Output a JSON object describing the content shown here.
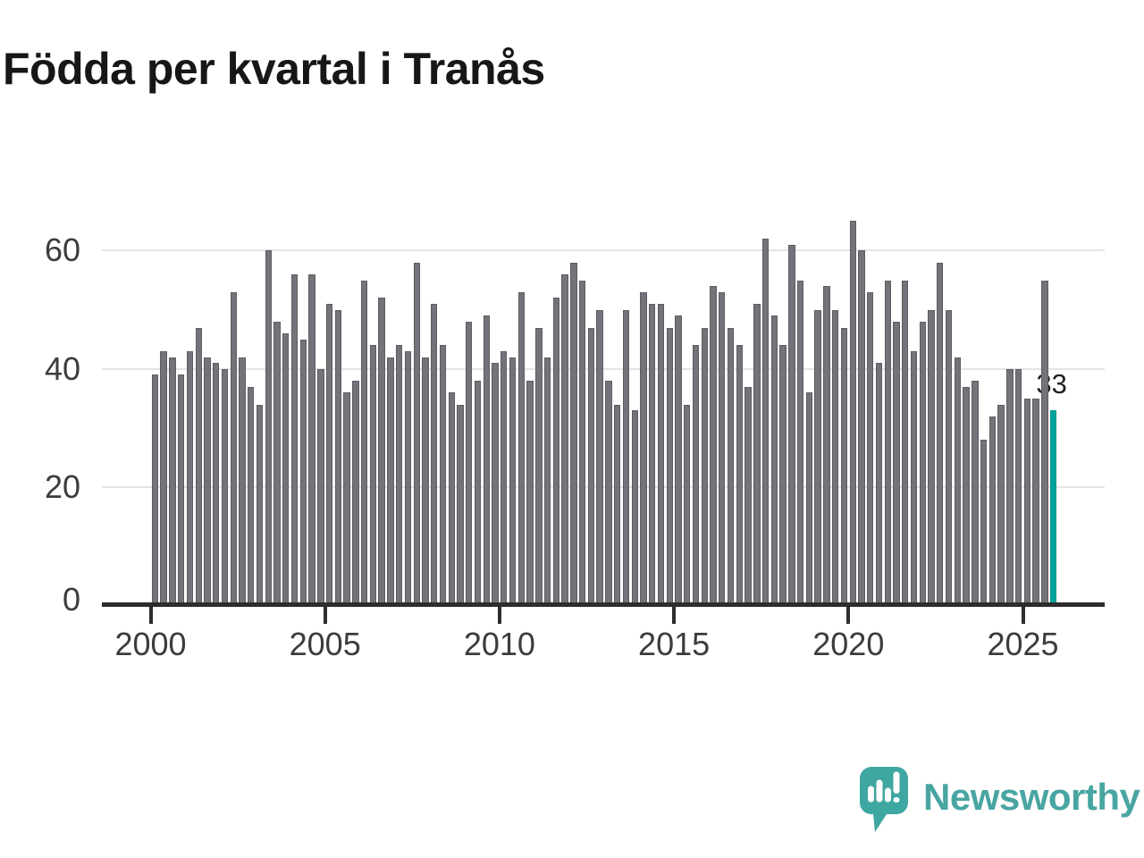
{
  "title": "Födda per kvartal i Tranås",
  "chart_data": {
    "type": "bar",
    "x_range": {
      "start": "2000 Q1",
      "end": "2025 Q4",
      "interval": "quarter"
    },
    "x_tick_labels": [
      "2000",
      "2005",
      "2010",
      "2015",
      "2020",
      "2025"
    ],
    "y_tick_labels": [
      "0",
      "20",
      "40",
      "60"
    ],
    "y_ticks": [
      0,
      20,
      40,
      60
    ],
    "ylim": [
      0,
      66
    ],
    "grid": true,
    "legend": "none",
    "series": [
      {
        "name": "Födda per kvartal",
        "values": [
          39,
          43,
          42,
          39,
          43,
          47,
          42,
          41,
          40,
          53,
          42,
          37,
          34,
          60,
          48,
          46,
          56,
          45,
          56,
          40,
          51,
          50,
          36,
          38,
          55,
          44,
          52,
          42,
          44,
          43,
          58,
          42,
          51,
          44,
          36,
          34,
          48,
          38,
          49,
          41,
          43,
          42,
          53,
          38,
          47,
          42,
          52,
          56,
          58,
          55,
          47,
          50,
          38,
          34,
          50,
          33,
          53,
          51,
          51,
          47,
          49,
          34,
          44,
          47,
          54,
          53,
          47,
          44,
          37,
          51,
          62,
          49,
          44,
          61,
          55,
          36,
          50,
          54,
          50,
          47,
          65,
          60,
          53,
          41,
          55,
          48,
          55,
          43,
          48,
          50,
          58,
          50,
          42,
          37,
          38,
          28,
          32,
          34,
          40,
          40,
          35,
          35,
          55,
          33
        ]
      }
    ],
    "highlight_last_bar": true,
    "last_value_label": "33"
  },
  "colors": {
    "bar": "#74737a",
    "bar_border": "#5d5c63",
    "highlight_teal": "#00a39a",
    "gridline": "#e4e4e4",
    "axis": "#2d2d2d",
    "tick_label": "#3c3c3c",
    "title": "#171717",
    "brand_teal": "#48a5a1",
    "logo_icon_teal": "#3fa7a1"
  },
  "branding": {
    "name": "Newsworthy",
    "icon": "newsworthy-speech-bubble-bar-chart-icon"
  }
}
